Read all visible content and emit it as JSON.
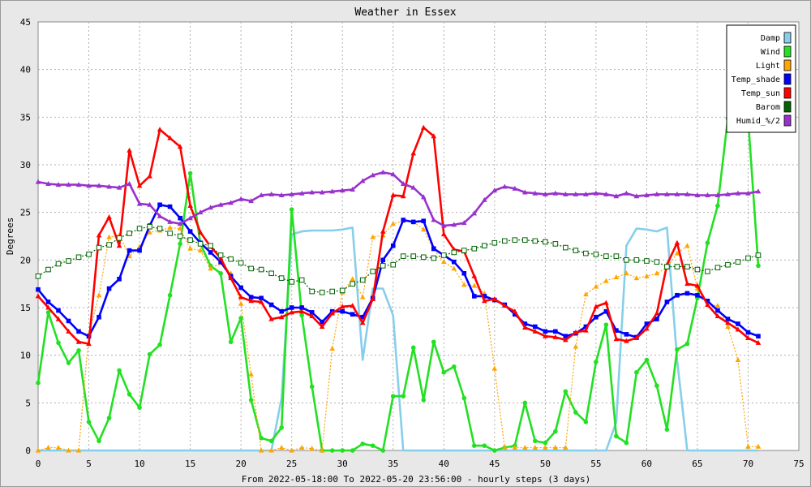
{
  "chart_data": {
    "type": "line",
    "title": "Weather in Essex",
    "xlabel": "From 2022-05-18:00 To 2022-05-20 23:56:00 - hourly steps (3 days)",
    "ylabel": "Degrees",
    "xlim": [
      0,
      75
    ],
    "ylim": [
      0,
      45
    ],
    "xticks": [
      "0",
      "5",
      "10",
      "15",
      "20",
      "25",
      "30",
      "35",
      "40",
      "45",
      "50",
      "55",
      "60",
      "65",
      "70",
      "75"
    ],
    "yticks": [
      "0",
      "5",
      "10",
      "15",
      "20",
      "25",
      "30",
      "35",
      "40",
      "45"
    ],
    "grid": true,
    "legend_position": "top-right",
    "series": [
      {
        "name": "Damp",
        "color": "#87ceeb",
        "marker": "none",
        "style": "solid",
        "values": [
          0,
          0,
          0,
          0,
          0,
          0,
          0,
          0,
          0,
          0,
          0,
          0,
          0,
          0,
          0,
          0,
          0,
          0,
          0,
          0,
          0,
          0,
          0,
          0,
          5.5,
          22.7,
          23,
          23.1,
          23.1,
          23.1,
          23.2,
          23.4,
          9.5,
          17,
          17,
          14.2,
          0,
          0,
          0,
          0,
          0,
          0,
          0,
          0,
          0,
          0,
          0,
          0,
          0,
          0,
          0,
          0,
          0,
          0,
          0,
          0,
          0,
          3,
          21.5,
          23.3,
          23.2,
          23,
          23.4,
          9.5,
          0,
          0,
          0,
          0,
          0,
          0,
          0,
          0
        ]
      },
      {
        "name": "Wind",
        "color": "#22e022",
        "marker": "circle",
        "style": "solid",
        "values": [
          7.1,
          14.5,
          11.3,
          9.2,
          10.5,
          3,
          1,
          3.4,
          8.4,
          5.9,
          4.5,
          10.1,
          11.1,
          16.3,
          21.7,
          29.1,
          21.7,
          19.4,
          18.6,
          11.4,
          13.9,
          5.3,
          1.3,
          1,
          2.4,
          25.3,
          14.2,
          6.7,
          0,
          0,
          0,
          0,
          0.7,
          0.5,
          0,
          5.7,
          5.7,
          10.8,
          5.3,
          11.4,
          8.2,
          8.8,
          5.5,
          0.5,
          0.5,
          0,
          0.3,
          0.5,
          5,
          1,
          0.8,
          2,
          6.2,
          4,
          3,
          9.3,
          13.2,
          1.5,
          0.8,
          8.2,
          9.5,
          6.8,
          2.2,
          10.6,
          11.2,
          16,
          21.8,
          25.7,
          34.9,
          34.9,
          34.8,
          19.4
        ]
      },
      {
        "name": "Light",
        "color": "#ffa500",
        "marker": "triangle",
        "style": "dotted",
        "values": [
          0,
          0.3,
          0.3,
          0,
          0,
          12.2,
          16.3,
          22.4,
          22.6,
          20.4,
          21.4,
          22.9,
          23.1,
          23.4,
          23.3,
          21.2,
          21,
          19.1,
          19.7,
          18.6,
          15.4,
          8,
          0,
          0,
          0.3,
          0,
          0.3,
          0.2,
          0,
          10.7,
          16.6,
          18,
          16.1,
          22.4,
          22.6,
          23.8,
          24.1,
          24,
          23.2,
          21.1,
          19.8,
          19.1,
          17.4,
          17.3,
          16.5,
          8.6,
          0.3,
          0.3,
          0.3,
          0.3,
          0.3,
          0.3,
          0.3,
          10.9,
          16.4,
          17.2,
          17.8,
          18.2,
          18.6,
          18.1,
          18.3,
          18.6,
          19.2,
          20.7,
          21.5,
          17,
          15.3,
          15.2,
          13,
          9.5,
          0.4,
          0.4
        ]
      },
      {
        "name": "Temp_shade",
        "color": "#0000ff",
        "marker": "square",
        "style": "solid",
        "values": [
          16.9,
          15.6,
          14.7,
          13.6,
          12.5,
          12,
          14,
          17,
          18,
          21,
          21,
          23.6,
          25.8,
          25.6,
          24.4,
          23,
          21.8,
          20.8,
          19.8,
          18.3,
          17.1,
          16.1,
          16,
          15.3,
          14.6,
          15,
          15,
          14.5,
          13.5,
          14.6,
          14.6,
          14.3,
          14,
          16,
          20,
          21.5,
          24.2,
          24,
          24.1,
          21.2,
          20.5,
          19.8,
          18.6,
          16.2,
          16.2,
          15.8,
          15.3,
          14.3,
          13.3,
          13,
          12.5,
          12.5,
          12,
          12.3,
          13,
          14,
          14.6,
          12.6,
          12.2,
          11.9,
          13.3,
          13.8,
          15.6,
          16.3,
          16.5,
          16.3,
          15.7,
          14.7,
          13.8,
          13.3,
          12.4,
          12
        ]
      },
      {
        "name": "Temp_sun",
        "color": "#ff0000",
        "marker": "triangle",
        "style": "solid",
        "values": [
          16.2,
          15,
          13.8,
          12.5,
          11.4,
          11.2,
          22.6,
          24.5,
          21.5,
          31.5,
          27.8,
          28.8,
          33.7,
          32.8,
          31.9,
          25.7,
          22.9,
          21.4,
          20.2,
          18.1,
          16.1,
          15.7,
          15.6,
          13.8,
          14,
          14.5,
          14.6,
          14.1,
          13,
          14.4,
          15.1,
          15.2,
          13.4,
          15.9,
          23,
          26.8,
          26.7,
          31.2,
          33.9,
          33,
          22.7,
          21.1,
          20.9,
          18.3,
          15.7,
          15.9,
          15.2,
          14.6,
          12.9,
          12.5,
          12,
          11.9,
          11.6,
          12.4,
          12.6,
          15.1,
          15.5,
          11.7,
          11.5,
          11.8,
          12.8,
          14.4,
          19.5,
          21.8,
          17.5,
          17.3,
          15.3,
          14.1,
          13.4,
          12.7,
          11.8,
          11.3
        ]
      },
      {
        "name": "Barom",
        "color": "#006400",
        "marker": "square-open",
        "style": "dotted",
        "values": [
          18.3,
          19,
          19.6,
          19.9,
          20.3,
          20.6,
          21.3,
          21.6,
          22.3,
          22.8,
          23.3,
          23.5,
          23.3,
          22.8,
          22.5,
          22.1,
          21.7,
          21.5,
          20.5,
          20.1,
          19.7,
          19.1,
          19,
          18.6,
          18.1,
          17.7,
          17.9,
          16.7,
          16.6,
          16.7,
          16.8,
          17.5,
          17.9,
          18.8,
          19.4,
          19.5,
          20.4,
          20.4,
          20.3,
          20.2,
          20.5,
          20.8,
          21,
          21.2,
          21.5,
          21.8,
          22,
          22.1,
          22.1,
          22,
          21.9,
          21.7,
          21.3,
          21,
          20.7,
          20.6,
          20.4,
          20.4,
          20,
          20,
          19.9,
          19.8,
          19.3,
          19.3,
          19.3,
          19,
          18.8,
          19.2,
          19.5,
          19.8,
          20.2,
          20.5
        ]
      },
      {
        "name": "Humid_%/2",
        "color": "#9932cc",
        "marker": "triangle",
        "style": "solid",
        "values": [
          28.2,
          28,
          27.9,
          27.9,
          27.9,
          27.8,
          27.8,
          27.7,
          27.6,
          28,
          25.9,
          25.8,
          24.6,
          24,
          23.8,
          24.4,
          25,
          25.5,
          25.8,
          26,
          26.4,
          26.2,
          26.8,
          26.9,
          26.8,
          26.9,
          27,
          27.1,
          27.1,
          27.2,
          27.3,
          27.4,
          28.3,
          28.9,
          29.2,
          29,
          28,
          27.6,
          26.6,
          24.2,
          23.6,
          23.7,
          23.9,
          24.9,
          26.3,
          27.3,
          27.7,
          27.5,
          27.1,
          27,
          26.9,
          27,
          26.9,
          26.9,
          26.9,
          27,
          26.9,
          26.7,
          27,
          26.7,
          26.8,
          26.9,
          26.9,
          26.9,
          26.9,
          26.8,
          26.8,
          26.8,
          26.9,
          27,
          27,
          27.2
        ]
      }
    ]
  }
}
